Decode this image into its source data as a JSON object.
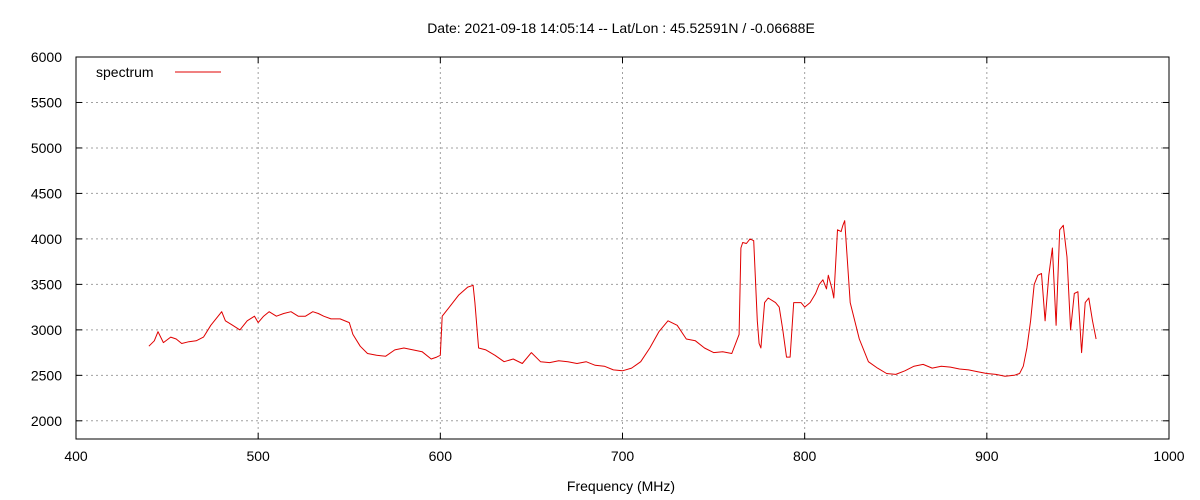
{
  "chart_data": {
    "type": "line",
    "title": "Date: 2021-09-18 14:05:14  --  Lat/Lon : 45.52591N / -0.06688E",
    "xlabel": "Frequency (MHz)",
    "ylabel": "",
    "xlim": [
      400,
      1000
    ],
    "ylim": [
      1800,
      6000
    ],
    "xticks": [
      400,
      500,
      600,
      700,
      800,
      900,
      1000
    ],
    "yticks": [
      2000,
      2500,
      3000,
      3500,
      4000,
      4500,
      5000,
      5500,
      6000
    ],
    "grid": true,
    "legend": "top-left",
    "series": [
      {
        "name": "spectrum",
        "color": "#e00000",
        "x": [
          440,
          443,
          445,
          448,
          452,
          455,
          458,
          462,
          466,
          470,
          474,
          478,
          480,
          482,
          486,
          490,
          494,
          498,
          500,
          503,
          506,
          510,
          514,
          518,
          522,
          526,
          530,
          533,
          536,
          540,
          545,
          550,
          552,
          556,
          560,
          565,
          570,
          575,
          580,
          585,
          590,
          595,
          598,
          600,
          601,
          605,
          610,
          615,
          618,
          619,
          621,
          625,
          630,
          635,
          640,
          645,
          650,
          655,
          660,
          665,
          670,
          675,
          680,
          685,
          690,
          695,
          700,
          705,
          710,
          715,
          720,
          725,
          730,
          735,
          740,
          745,
          750,
          755,
          760,
          764,
          765,
          766,
          768,
          770,
          772,
          774,
          775,
          776,
          778,
          780,
          784,
          786,
          788,
          790,
          792,
          794,
          798,
          800,
          803,
          806,
          808,
          810,
          812,
          813,
          815,
          816,
          818,
          820,
          821,
          822,
          825,
          830,
          835,
          840,
          845,
          850,
          855,
          860,
          865,
          870,
          875,
          880,
          885,
          890,
          895,
          900,
          905,
          910,
          915,
          918,
          920,
          922,
          924,
          926,
          928,
          930,
          932,
          934,
          936,
          938,
          940,
          942,
          944,
          946,
          948,
          950,
          952,
          954,
          956,
          958,
          960
        ],
        "y": [
          2820,
          2880,
          2980,
          2860,
          2920,
          2900,
          2850,
          2870,
          2880,
          2920,
          3050,
          3150,
          3200,
          3100,
          3050,
          3000,
          3100,
          3150,
          3080,
          3150,
          3200,
          3150,
          3180,
          3200,
          3150,
          3150,
          3200,
          3180,
          3150,
          3120,
          3120,
          3080,
          2950,
          2820,
          2740,
          2720,
          2710,
          2780,
          2800,
          2780,
          2760,
          2680,
          2700,
          2720,
          3150,
          3250,
          3380,
          3470,
          3490,
          3300,
          2800,
          2780,
          2720,
          2650,
          2680,
          2630,
          2750,
          2650,
          2640,
          2660,
          2650,
          2630,
          2650,
          2610,
          2600,
          2560,
          2550,
          2580,
          2650,
          2800,
          2980,
          3100,
          3050,
          2900,
          2880,
          2800,
          2750,
          2760,
          2740,
          2950,
          3900,
          3960,
          3950,
          4000,
          3980,
          3100,
          2850,
          2800,
          3300,
          3350,
          3300,
          3250,
          3000,
          2700,
          2700,
          3300,
          3300,
          3250,
          3300,
          3400,
          3500,
          3550,
          3450,
          3600,
          3450,
          3350,
          4100,
          4080,
          4150,
          4200,
          3300,
          2900,
          2650,
          2580,
          2520,
          2510,
          2550,
          2600,
          2620,
          2580,
          2600,
          2590,
          2570,
          2560,
          2540,
          2520,
          2510,
          2490,
          2500,
          2520,
          2600,
          2800,
          3100,
          3500,
          3600,
          3620,
          3100,
          3600,
          3900,
          3050,
          4100,
          4150,
          3800,
          3000,
          3400,
          3420,
          2750,
          3300,
          3350,
          3100,
          2900
        ]
      }
    ]
  }
}
